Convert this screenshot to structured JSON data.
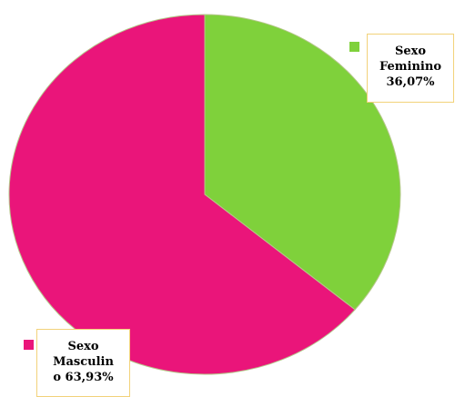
{
  "chart_data": {
    "type": "pie",
    "title": "",
    "slices": [
      {
        "name": "Sexo Feminino",
        "label_lines": [
          "Sexo",
          "Feminino",
          "36,07%"
        ],
        "value": 36.07,
        "color": "#7fd13b"
      },
      {
        "name": "Sexo Masculino",
        "label_lines": [
          "Sexo",
          "Masculin",
          "o 63,93%"
        ],
        "value": 63.93,
        "color": "#ea157a"
      }
    ],
    "start_angle": "12 o'clock",
    "direction": "clockwise",
    "legend": "none"
  }
}
